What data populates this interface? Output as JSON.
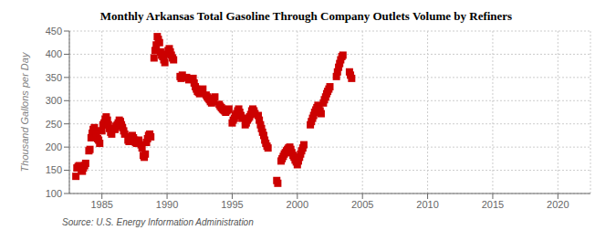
{
  "chart_data": {
    "type": "scatter",
    "title": "Monthly Arkansas Total Gasoline Through Company Outlets Volume by Refiners",
    "ylabel": "Thousand Gallons per Day",
    "annotations": [
      "Source: U.S. Energy Information Administration"
    ],
    "color": "#cc0000",
    "marker": "square",
    "grid": true,
    "xlim": [
      1982.5,
      2022.5
    ],
    "ylim": [
      100,
      450
    ],
    "xticks": [
      1985,
      1990,
      1995,
      2000,
      2005,
      2010,
      2015,
      2020
    ],
    "yticks": [
      100,
      150,
      200,
      250,
      300,
      350,
      400,
      450
    ],
    "x": [
      1983.0,
      1983.08,
      1983.17,
      1983.25,
      1983.33,
      1983.42,
      1983.5,
      1983.58,
      1983.67,
      1983.75,
      1984.0,
      1984.08,
      1984.17,
      1984.25,
      1984.33,
      1984.42,
      1984.5,
      1984.58,
      1984.67,
      1984.75,
      1984.83,
      1985.0,
      1985.08,
      1985.17,
      1985.25,
      1985.33,
      1985.42,
      1985.5,
      1985.58,
      1985.67,
      1985.75,
      1986.0,
      1986.08,
      1986.17,
      1986.25,
      1986.33,
      1986.42,
      1986.5,
      1986.58,
      1986.67,
      1986.75,
      1987.0,
      1987.08,
      1987.17,
      1987.25,
      1987.33,
      1987.42,
      1987.5,
      1987.58,
      1987.67,
      1987.75,
      1987.83,
      1988.0,
      1988.08,
      1988.17,
      1988.25,
      1988.33,
      1988.42,
      1988.5,
      1988.58,
      1988.67,
      1988.75,
      1989.0,
      1989.08,
      1989.17,
      1989.25,
      1989.33,
      1989.42,
      1989.5,
      1989.58,
      1989.67,
      1989.75,
      1989.83,
      1990.0,
      1990.08,
      1990.17,
      1990.25,
      1990.33,
      1990.42,
      1990.5,
      1991.0,
      1991.08,
      1991.17,
      1991.5,
      1991.67,
      1992.0,
      1992.08,
      1992.17,
      1992.25,
      1992.33,
      1992.42,
      1992.5,
      1992.58,
      1992.67,
      1992.75,
      1993.0,
      1993.08,
      1993.17,
      1993.25,
      1993.33,
      1993.42,
      1993.5,
      1993.58,
      1993.67,
      1994.0,
      1994.08,
      1994.17,
      1994.25,
      1994.33,
      1994.42,
      1994.5,
      1994.58,
      1994.67,
      1994.75,
      1995.0,
      1995.08,
      1995.17,
      1995.25,
      1995.33,
      1995.42,
      1995.5,
      1995.58,
      1995.67,
      1995.75,
      1996.0,
      1996.08,
      1996.17,
      1996.25,
      1996.33,
      1996.42,
      1996.5,
      1996.58,
      1996.67,
      1996.75,
      1997.0,
      1997.08,
      1997.17,
      1997.25,
      1997.33,
      1997.42,
      1997.5,
      1997.58,
      1997.67,
      1997.75,
      1998.42,
      1998.5,
      1998.75,
      1998.83,
      1998.92,
      1999.0,
      1999.08,
      1999.17,
      1999.25,
      1999.33,
      1999.42,
      1999.5,
      1999.58,
      1999.67,
      1999.75,
      1999.83,
      1999.92,
      2000.0,
      2000.08,
      2000.17,
      2000.25,
      2000.33,
      2000.42,
      2000.5,
      2001.0,
      2001.08,
      2001.17,
      2001.25,
      2001.33,
      2001.42,
      2001.5,
      2001.58,
      2001.67,
      2001.75,
      2001.83,
      2002.0,
      2002.08,
      2002.17,
      2002.25,
      2002.33,
      2002.42,
      2002.5,
      2003.0,
      2003.08,
      2003.17,
      2003.25,
      2003.33,
      2003.42,
      2003.5,
      2004.0,
      2004.08,
      2004.17
    ],
    "values": [
      137,
      155,
      158,
      160,
      155,
      150,
      148,
      155,
      160,
      165,
      192,
      195,
      220,
      230,
      238,
      242,
      235,
      228,
      218,
      215,
      208,
      235,
      248,
      252,
      260,
      265,
      258,
      248,
      240,
      232,
      228,
      238,
      245,
      248,
      252,
      258,
      255,
      248,
      242,
      235,
      228,
      215,
      212,
      218,
      222,
      225,
      220,
      215,
      210,
      208,
      212,
      215,
      205,
      198,
      182,
      178,
      185,
      210,
      218,
      225,
      228,
      222,
      392,
      408,
      420,
      438,
      432,
      425,
      405,
      398,
      395,
      388,
      382,
      400,
      408,
      412,
      405,
      398,
      392,
      388,
      352,
      348,
      355,
      350,
      345,
      348,
      338,
      330,
      325,
      320,
      318,
      315,
      318,
      322,
      325,
      312,
      308,
      305,
      302,
      298,
      295,
      298,
      302,
      308,
      292,
      288,
      285,
      282,
      280,
      278,
      275,
      278,
      280,
      282,
      252,
      258,
      262,
      268,
      272,
      278,
      282,
      275,
      268,
      262,
      248,
      252,
      258,
      262,
      265,
      270,
      278,
      282,
      278,
      272,
      268,
      258,
      248,
      240,
      232,
      225,
      215,
      208,
      202,
      198,
      128,
      122,
      170,
      175,
      180,
      185,
      188,
      192,
      195,
      198,
      200,
      195,
      188,
      182,
      178,
      172,
      168,
      162,
      170,
      178,
      185,
      192,
      198,
      205,
      248,
      255,
      262,
      268,
      275,
      280,
      285,
      290,
      285,
      278,
      272,
      295,
      302,
      308,
      315,
      320,
      325,
      330,
      352,
      362,
      372,
      380,
      388,
      395,
      398,
      362,
      355,
      348
    ]
  }
}
